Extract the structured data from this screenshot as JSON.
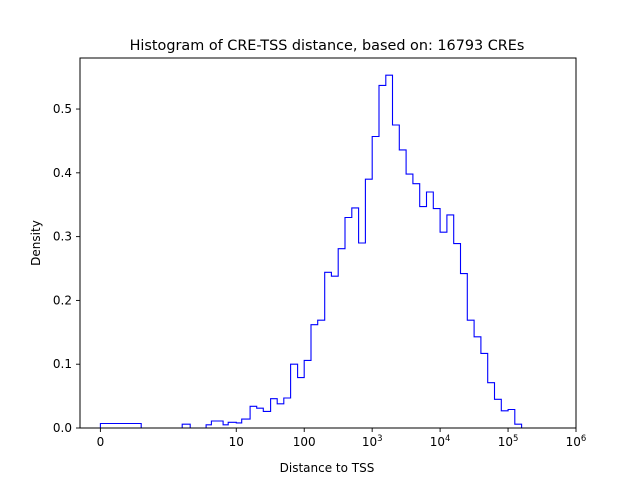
{
  "chart_data": {
    "type": "histogram",
    "title": "Histogram of CRE-TSS distance, based on: 16793 CREs",
    "xlabel": "Distance to TSS",
    "ylabel": "Density",
    "x_scale": "symlog",
    "xlim": [
      -0.3,
      1000000
    ],
    "ylim": [
      0,
      0.58
    ],
    "grid": false,
    "legend": "none",
    "series_color": "#0000ff",
    "x_ticks": [
      {
        "value": 0,
        "label": "0",
        "label_base": "0",
        "label_exp": ""
      },
      {
        "value": 10,
        "label": "10",
        "label_base": "10",
        "label_exp": ""
      },
      {
        "value": 100,
        "label": "100",
        "label_base": "100",
        "label_exp": ""
      },
      {
        "value": 1000,
        "label": "10^3",
        "label_base": "10",
        "label_exp": "3"
      },
      {
        "value": 10000,
        "label": "10^4",
        "label_base": "10",
        "label_exp": "4"
      },
      {
        "value": 100000,
        "label": "10^5",
        "label_base": "10",
        "label_exp": "5"
      },
      {
        "value": 1000000,
        "label": "10^6",
        "label_base": "10",
        "label_exp": "6"
      }
    ],
    "y_ticks": [
      {
        "value": 0.0,
        "label": "0.0"
      },
      {
        "value": 0.1,
        "label": "0.1"
      },
      {
        "value": 0.2,
        "label": "0.2"
      },
      {
        "value": 0.3,
        "label": "0.3"
      },
      {
        "value": 0.4,
        "label": "0.4"
      },
      {
        "value": 0.5,
        "label": "0.5"
      }
    ],
    "bin_edges": [
      0,
      0.6,
      1.6,
      2.1,
      3.6,
      4.3,
      6.4,
      7.6,
      10,
      12,
      16,
      20,
      25,
      32,
      40,
      50,
      63,
      80,
      100,
      126,
      158,
      200,
      251,
      316,
      398,
      501,
      631,
      794,
      1000,
      1259,
      1585,
      1995,
      2512,
      3162,
      3981,
      5012,
      6310,
      7943,
      10000,
      12589,
      15849,
      19953,
      25119,
      31623,
      39811,
      50119,
      63096,
      79433,
      100000,
      125893,
      158489,
      199526,
      251189,
      316228
    ],
    "densities": [
      0.007,
      0.0,
      0.006,
      0.0,
      0.005,
      0.011,
      0.005,
      0.009,
      0.008,
      0.014,
      0.034,
      0.031,
      0.026,
      0.046,
      0.038,
      0.047,
      0.1,
      0.079,
      0.106,
      0.162,
      0.169,
      0.244,
      0.238,
      0.281,
      0.33,
      0.345,
      0.29,
      0.39,
      0.457,
      0.537,
      0.553,
      0.475,
      0.436,
      0.398,
      0.383,
      0.347,
      0.37,
      0.344,
      0.307,
      0.334,
      0.289,
      0.242,
      0.169,
      0.143,
      0.117,
      0.071,
      0.045,
      0.027,
      0.029,
      0.006,
      0.0,
      0.0,
      0.0
    ]
  }
}
